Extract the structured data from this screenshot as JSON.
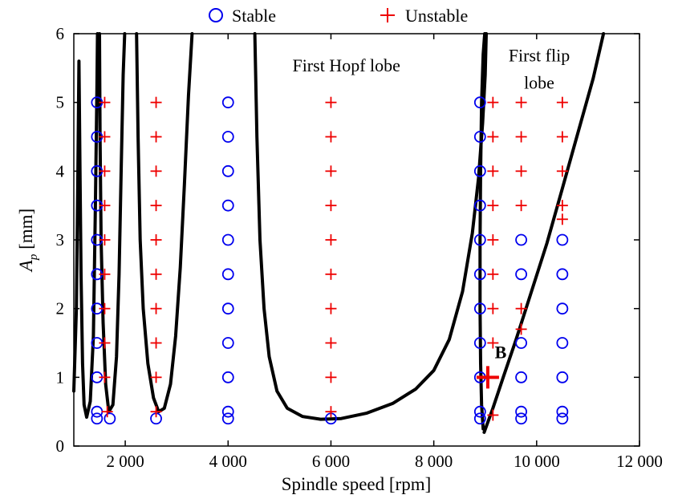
{
  "chart_data": {
    "type": "scatter",
    "xlabel": "Spindle speed [rpm]",
    "ylabel_main": "A",
    "ylabel_sub": "p",
    "ylabel_unit": " [mm]",
    "xlim": [
      1000,
      12000
    ],
    "ylim": [
      0,
      6
    ],
    "xticks": [
      2000,
      4000,
      6000,
      8000,
      10000,
      12000
    ],
    "xtick_labels": [
      "2 000",
      "4 000",
      "6 000",
      "8 000",
      "10 000",
      "12 000"
    ],
    "yticks": [
      0,
      1,
      2,
      3,
      4,
      5,
      6
    ],
    "ytick_labels": [
      "0",
      "1",
      "2",
      "3",
      "4",
      "5",
      "6"
    ],
    "legend": [
      {
        "name": "Stable",
        "marker": "circle",
        "color": "#0000ee"
      },
      {
        "name": "Unstable",
        "marker": "plus",
        "color": "#ee0000"
      }
    ],
    "annotations": [
      {
        "text": "First Hopf lobe",
        "x": 6300,
        "y": 5.45
      },
      {
        "text": "First flip",
        "x": 10050,
        "y": 5.6
      },
      {
        "text": "lobe",
        "x": 10050,
        "y": 5.2
      }
    ],
    "point_label": {
      "text": "B",
      "x": 9300,
      "y": 1.28
    },
    "highlight_point": {
      "x": 9050,
      "y": 1.0
    },
    "stable_points": [
      [
        1450,
        5
      ],
      [
        1450,
        4.5
      ],
      [
        1450,
        4
      ],
      [
        1450,
        3.5
      ],
      [
        1450,
        3
      ],
      [
        1450,
        2.5
      ],
      [
        1450,
        2
      ],
      [
        1450,
        1.5
      ],
      [
        1450,
        1
      ],
      [
        1450,
        0.5
      ],
      [
        1450,
        0.4
      ],
      [
        1700,
        0.4
      ],
      [
        2600,
        0.4
      ],
      [
        4000,
        5
      ],
      [
        4000,
        4.5
      ],
      [
        4000,
        4
      ],
      [
        4000,
        3.5
      ],
      [
        4000,
        3
      ],
      [
        4000,
        2.5
      ],
      [
        4000,
        2
      ],
      [
        4000,
        1.5
      ],
      [
        4000,
        1
      ],
      [
        4000,
        0.5
      ],
      [
        4000,
        0.4
      ],
      [
        6000,
        0.4
      ],
      [
        8900,
        5
      ],
      [
        8900,
        4.5
      ],
      [
        8900,
        4
      ],
      [
        8900,
        3.5
      ],
      [
        8900,
        3
      ],
      [
        8900,
        2.5
      ],
      [
        8900,
        2
      ],
      [
        8900,
        1.5
      ],
      [
        8900,
        1
      ],
      [
        8900,
        0.5
      ],
      [
        8900,
        0.4
      ],
      [
        9700,
        1.5
      ],
      [
        9700,
        1
      ],
      [
        9700,
        0.5
      ],
      [
        9700,
        0.4
      ],
      [
        9700,
        3
      ],
      [
        9700,
        2.5
      ],
      [
        10500,
        3
      ],
      [
        10500,
        2.5
      ],
      [
        10500,
        2
      ],
      [
        10500,
        1.5
      ],
      [
        10500,
        1
      ],
      [
        10500,
        0.5
      ],
      [
        10500,
        0.4
      ]
    ],
    "unstable_points": [
      [
        1600,
        5
      ],
      [
        1600,
        4.5
      ],
      [
        1600,
        4
      ],
      [
        1600,
        3.5
      ],
      [
        1600,
        3
      ],
      [
        1600,
        2.5
      ],
      [
        1600,
        2
      ],
      [
        1600,
        1.5
      ],
      [
        1600,
        1
      ],
      [
        1650,
        0.5
      ],
      [
        2600,
        5
      ],
      [
        2600,
        4.5
      ],
      [
        2600,
        4
      ],
      [
        2600,
        3.5
      ],
      [
        2600,
        3
      ],
      [
        2600,
        2.5
      ],
      [
        2600,
        2
      ],
      [
        2600,
        1.5
      ],
      [
        2600,
        1
      ],
      [
        2600,
        0.5
      ],
      [
        6000,
        5
      ],
      [
        6000,
        4.5
      ],
      [
        6000,
        4
      ],
      [
        6000,
        3.5
      ],
      [
        6000,
        3
      ],
      [
        6000,
        2.5
      ],
      [
        6000,
        2
      ],
      [
        6000,
        1.5
      ],
      [
        6000,
        1
      ],
      [
        6000,
        0.5
      ],
      [
        9150,
        5
      ],
      [
        9150,
        4.5
      ],
      [
        9150,
        4
      ],
      [
        9150,
        3.5
      ],
      [
        9150,
        3
      ],
      [
        9150,
        2.5
      ],
      [
        9150,
        2
      ],
      [
        9150,
        1.5
      ],
      [
        9150,
        0.45
      ],
      [
        9700,
        5
      ],
      [
        9700,
        4.5
      ],
      [
        9700,
        4
      ],
      [
        9700,
        3.5
      ],
      [
        9700,
        2
      ],
      [
        9700,
        1.7
      ],
      [
        10500,
        5
      ],
      [
        10500,
        4.5
      ],
      [
        10500,
        4
      ],
      [
        10500,
        3.5
      ],
      [
        10500,
        3.3
      ]
    ],
    "lobe_curves": [
      [
        [
          1000,
          0.8
        ],
        [
          1050,
          2
        ],
        [
          1080,
          4
        ],
        [
          1100,
          5.6
        ],
        [
          1120,
          4
        ],
        [
          1140,
          2.5
        ],
        [
          1170,
          1.2
        ],
        [
          1200,
          0.6
        ],
        [
          1250,
          0.42
        ],
        [
          1320,
          0.65
        ],
        [
          1380,
          1.6
        ],
        [
          1420,
          3.5
        ],
        [
          1450,
          5.2
        ],
        [
          1460,
          6
        ]
      ],
      [
        [
          1500,
          6
        ],
        [
          1510,
          4.5
        ],
        [
          1530,
          3
        ],
        [
          1570,
          1.8
        ],
        [
          1620,
          0.9
        ],
        [
          1680,
          0.5
        ],
        [
          1760,
          0.6
        ],
        [
          1830,
          1.3
        ],
        [
          1880,
          2.5
        ],
        [
          1920,
          4
        ],
        [
          1960,
          5.4
        ],
        [
          1990,
          6
        ]
      ],
      [
        [
          2220,
          6
        ],
        [
          2250,
          4.5
        ],
        [
          2290,
          3
        ],
        [
          2350,
          2
        ],
        [
          2440,
          1.2
        ],
        [
          2550,
          0.7
        ],
        [
          2650,
          0.5
        ],
        [
          2760,
          0.55
        ],
        [
          2880,
          0.9
        ],
        [
          2980,
          1.6
        ],
        [
          3070,
          2.6
        ],
        [
          3150,
          3.8
        ],
        [
          3230,
          5.1
        ],
        [
          3300,
          6
        ]
      ],
      [
        [
          4520,
          6
        ],
        [
          4560,
          4.5
        ],
        [
          4620,
          3
        ],
        [
          4700,
          2
        ],
        [
          4800,
          1.3
        ],
        [
          4950,
          0.8
        ],
        [
          5150,
          0.55
        ],
        [
          5450,
          0.43
        ],
        [
          5800,
          0.39
        ],
        [
          6200,
          0.4
        ],
        [
          6700,
          0.48
        ],
        [
          7200,
          0.62
        ],
        [
          7650,
          0.83
        ],
        [
          8000,
          1.1
        ],
        [
          8300,
          1.55
        ],
        [
          8560,
          2.25
        ],
        [
          8750,
          3.1
        ],
        [
          8870,
          3.9
        ],
        [
          8950,
          4.7
        ],
        [
          9000,
          5.4
        ],
        [
          9020,
          6
        ]
      ],
      [
        [
          8960,
          0.25
        ],
        [
          8930,
          0.6
        ],
        [
          8910,
          1.2
        ],
        [
          8900,
          2
        ],
        [
          8900,
          3
        ],
        [
          8910,
          4
        ],
        [
          8930,
          5
        ],
        [
          8960,
          5.7
        ],
        [
          8990,
          6
        ]
      ],
      [
        [
          8980,
          0.2
        ],
        [
          9150,
          0.55
        ],
        [
          9350,
          1.0
        ],
        [
          9600,
          1.55
        ],
        [
          9900,
          2.25
        ],
        [
          10200,
          2.95
        ],
        [
          10500,
          3.75
        ],
        [
          10800,
          4.55
        ],
        [
          11100,
          5.35
        ],
        [
          11300,
          6
        ]
      ]
    ]
  }
}
